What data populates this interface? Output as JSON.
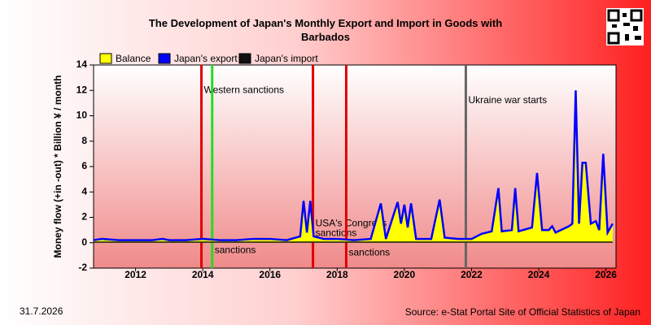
{
  "chart_data": {
    "type": "line",
    "title": "The Development of Japan's Monthly Export and Import in Goods with Barbados",
    "y_label": "Money flow (+in -out) * Billion ¥ / month",
    "date": "31.7.2026",
    "source": "Source: e-Stat Portal Site of Official Statistics of Japan",
    "xlim": [
      2010.75,
      2026.3
    ],
    "xticks": [
      2012,
      2014,
      2016,
      2018,
      2020,
      2022,
      2024,
      2026
    ],
    "ylim": [
      -2,
      14
    ],
    "yticks": [
      -2,
      0,
      2,
      4,
      6,
      8,
      10,
      12,
      14
    ],
    "x": [
      2010.75,
      2011,
      2011.5,
      2012,
      2012.5,
      2012.8,
      2013,
      2013.5,
      2014,
      2014.5,
      2015,
      2015.5,
      2016,
      2016.5,
      2016.9,
      2017.0,
      2017.1,
      2017.2,
      2017.3,
      2017.6,
      2018,
      2018.5,
      2019,
      2019.3,
      2019.45,
      2019.8,
      2019.9,
      2020.0,
      2020.1,
      2020.2,
      2020.35,
      2020.8,
      2021.05,
      2021.2,
      2021.6,
      2022.0,
      2022.3,
      2022.6,
      2022.8,
      2022.9,
      2023.2,
      2023.3,
      2023.4,
      2023.8,
      2023.95,
      2024.1,
      2024.3,
      2024.4,
      2024.5,
      2024.9,
      2025.0,
      2025.1,
      2025.2,
      2025.3,
      2025.4,
      2025.55,
      2025.7,
      2025.8,
      2025.92,
      2026.05,
      2026.2
    ],
    "series": [
      {
        "name": "Balance",
        "color": "#ffff00",
        "values": [
          0.15,
          0.25,
          0.15,
          0.15,
          0.15,
          0.25,
          0.15,
          0.15,
          0.25,
          0.15,
          0.15,
          0.25,
          0.25,
          0.15,
          0.45,
          3.25,
          0.75,
          3.25,
          0.45,
          0.25,
          0.25,
          0.15,
          0.25,
          3.05,
          0.25,
          3.15,
          1.45,
          2.95,
          1.15,
          3.05,
          0.25,
          0.25,
          3.35,
          0.35,
          0.25,
          0.25,
          0.65,
          0.85,
          4.25,
          0.85,
          0.95,
          4.25,
          0.85,
          1.15,
          5.45,
          0.95,
          0.95,
          1.25,
          0.75,
          1.25,
          1.45,
          11.95,
          1.45,
          6.25,
          6.25,
          1.45,
          1.65,
          0.95,
          6.95,
          0.75,
          1.45
        ]
      },
      {
        "name": "Japan's export",
        "color": "#0000ff",
        "values": [
          0.2,
          0.3,
          0.2,
          0.2,
          0.2,
          0.3,
          0.2,
          0.2,
          0.3,
          0.2,
          0.2,
          0.3,
          0.3,
          0.2,
          0.5,
          3.3,
          0.8,
          3.3,
          0.5,
          0.3,
          0.3,
          0.2,
          0.3,
          3.1,
          0.3,
          3.2,
          1.5,
          3.0,
          1.2,
          3.1,
          0.3,
          0.3,
          3.4,
          0.4,
          0.3,
          0.3,
          0.7,
          0.9,
          4.3,
          0.9,
          1.0,
          4.3,
          0.9,
          1.2,
          5.5,
          1.0,
          1.0,
          1.3,
          0.8,
          1.3,
          1.5,
          12.0,
          1.5,
          6.3,
          6.3,
          1.5,
          1.7,
          1.0,
          7.0,
          0.8,
          1.5
        ]
      },
      {
        "name": "Japan's import",
        "color": "#111111",
        "values": [
          0.05,
          0.05,
          0.05,
          0.05,
          0.05,
          0.05,
          0.05,
          0.05,
          0.05,
          0.05,
          0.05,
          0.05,
          0.05,
          0.05,
          0.05,
          0.05,
          0.05,
          0.05,
          0.05,
          0.05,
          0.05,
          0.05,
          0.05,
          0.05,
          0.05,
          0.05,
          0.05,
          0.05,
          0.05,
          0.05,
          0.05,
          0.05,
          0.05,
          0.05,
          0.05,
          0.05,
          0.05,
          0.05,
          0.05,
          0.05,
          0.05,
          0.05,
          0.05,
          0.05,
          0.05,
          0.05,
          0.05,
          0.05,
          0.05,
          0.05,
          0.05,
          0.05,
          0.05,
          0.05,
          0.05,
          0.05,
          0.05,
          0.05,
          0.05,
          0.05,
          0.05
        ]
      }
    ],
    "events": [
      {
        "x": 2013.96,
        "color": "#e00000",
        "label": [
          "Western sanctions"
        ],
        "label_y": 12
      },
      {
        "x": 2014.28,
        "color": "#22dd22",
        "label": [
          "sanctions"
        ],
        "label_y": -0.6
      },
      {
        "x": 2017.28,
        "color": "#e00000",
        "label": [
          "USA's Congress",
          "sanctions"
        ],
        "label_y": 1.5
      },
      {
        "x": 2018.27,
        "color": "#e00000",
        "label": [
          "sanctions"
        ],
        "label_y": -0.8
      },
      {
        "x": 2021.83,
        "color": "#666666",
        "label": [
          "Ukraine war starts"
        ],
        "label_y": 11.2
      }
    ]
  }
}
